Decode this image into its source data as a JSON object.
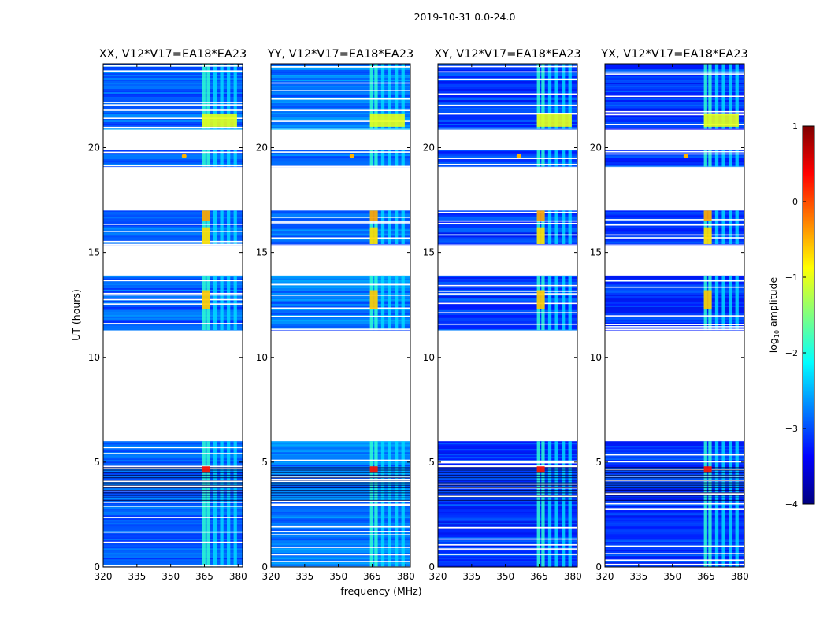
{
  "figure": {
    "suptitle": "2019-10-31 0.0-24.0",
    "xlabel": "frequency (MHz)",
    "ylabel": "UT (hours)"
  },
  "chart_data": {
    "type": "heatmap",
    "title": "2019-10-31 0.0-24.0",
    "xlabel": "frequency (MHz)",
    "ylabel": "UT (hours)",
    "xlim": [
      320,
      382
    ],
    "ylim": [
      0,
      24
    ],
    "xticks": [
      320,
      335,
      350,
      365,
      380
    ],
    "yticks": [
      0,
      5,
      10,
      15,
      20
    ],
    "panels": [
      {
        "title": "XX, V12*V17=EA18*EA23",
        "polarization": "XX",
        "background_log_amplitude": -2.9
      },
      {
        "title": "YY, V12*V17=EA18*EA23",
        "polarization": "YY",
        "background_log_amplitude": -2.8
      },
      {
        "title": "XY, V12*V17=EA18*EA23",
        "polarization": "XY",
        "background_log_amplitude": -3.1
      },
      {
        "title": "YX, V12*V17=EA18*EA23",
        "polarization": "YX",
        "background_log_amplitude": -3.1
      }
    ],
    "data_time_ranges_hours": [
      [
        0,
        6.0
      ],
      [
        11.3,
        13.9
      ],
      [
        15.4,
        17.0
      ],
      [
        19.1,
        19.9
      ],
      [
        20.9,
        24.0
      ]
    ],
    "rfi_channels_mhz": [
      [
        364,
        365.5
      ],
      [
        366,
        367.5
      ],
      [
        369,
        370.5
      ],
      [
        372,
        373.5
      ],
      [
        375,
        376.5
      ],
      [
        378,
        379.5
      ]
    ],
    "rfi_bands": [
      {
        "freq": [
          364,
          367.5
        ],
        "ut": [
          4.5,
          4.8
        ],
        "log_amplitude": 0.3
      },
      {
        "freq": [
          364,
          367.5
        ],
        "ut": [
          12.3,
          13.2
        ],
        "log_amplitude": -0.6
      },
      {
        "freq": [
          364,
          367.5
        ],
        "ut": [
          16.5,
          17.0
        ],
        "log_amplitude": -0.4
      },
      {
        "freq": [
          364,
          367.5
        ],
        "ut": [
          15.4,
          16.2
        ],
        "log_amplitude": -0.7
      },
      {
        "freq": [
          364,
          379.5
        ],
        "ut": [
          21.0,
          21.6
        ],
        "log_amplitude": -1.0
      }
    ],
    "point_source": {
      "freq_mhz": 356,
      "ut_hours": 19.6,
      "log_amplitude": -0.5
    },
    "colorbar": {
      "label": "log10 amplitude",
      "label_base": "log",
      "label_sub": "10",
      "label_rest": " amplitude",
      "range": [
        -4,
        1
      ],
      "ticks": [
        1,
        0,
        -1,
        -2,
        -3,
        -4
      ],
      "tick_labels": [
        "1",
        "0",
        "−1",
        "−2",
        "−3",
        "−4"
      ],
      "colormap": "jet"
    }
  }
}
